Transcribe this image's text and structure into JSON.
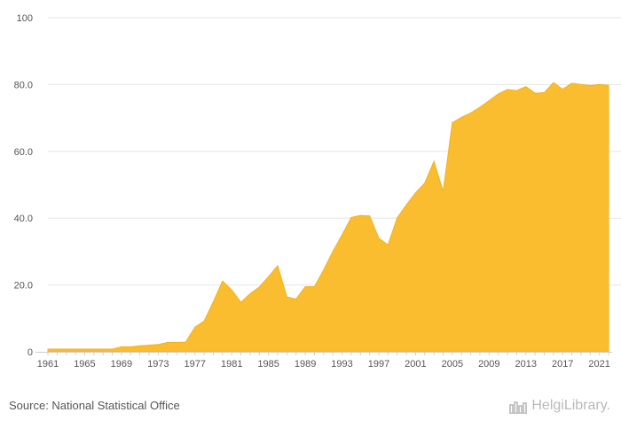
{
  "chart_data": {
    "type": "area",
    "title": "",
    "xlabel": "",
    "ylabel": "",
    "x": [
      1961,
      1962,
      1963,
      1964,
      1965,
      1966,
      1967,
      1968,
      1969,
      1970,
      1971,
      1972,
      1973,
      1974,
      1975,
      1976,
      1977,
      1978,
      1979,
      1980,
      1981,
      1982,
      1983,
      1984,
      1985,
      1986,
      1987,
      1988,
      1989,
      1990,
      1991,
      1992,
      1993,
      1994,
      1995,
      1996,
      1997,
      1998,
      1999,
      2000,
      2001,
      2002,
      2003,
      2004,
      2005,
      2006,
      2007,
      2008,
      2009,
      2010,
      2011,
      2012,
      2013,
      2014,
      2015,
      2016,
      2017,
      2018,
      2019,
      2020,
      2021,
      2022
    ],
    "values": [
      0.8,
      0.8,
      0.8,
      0.8,
      0.8,
      0.8,
      0.8,
      0.8,
      1.5,
      1.5,
      1.8,
      2.0,
      2.2,
      2.8,
      2.8,
      2.9,
      7.4,
      9.2,
      15.0,
      21.2,
      18.5,
      14.8,
      17.4,
      19.4,
      22.5,
      25.8,
      16.4,
      15.8,
      19.5,
      19.5,
      24.5,
      30.0,
      35.0,
      40.2,
      40.8,
      40.7,
      34.0,
      32.0,
      40.1,
      44.0,
      47.6,
      50.5,
      57.0,
      48.0,
      68.6,
      70.2,
      71.5,
      73.2,
      75.2,
      77.2,
      78.5,
      78.2,
      79.4,
      77.4,
      77.6,
      80.6,
      78.6,
      80.4,
      80.0,
      79.7,
      80.0,
      79.8
    ],
    "ylim": [
      0,
      100
    ],
    "yticks": [
      0,
      20.0,
      40.0,
      60.0,
      80.0,
      100
    ],
    "ytick_labels": [
      "0",
      "20.0",
      "40.0",
      "60.0",
      "80.0",
      "100"
    ],
    "xticks": [
      1961,
      1965,
      1969,
      1973,
      1977,
      1981,
      1985,
      1989,
      1993,
      1997,
      2001,
      2005,
      2009,
      2013,
      2017,
      2021
    ],
    "grid": true,
    "color": "#F9BD2F"
  },
  "footer": {
    "source": "Source: National Statistical Office",
    "brand": "HelgiLibrary."
  }
}
